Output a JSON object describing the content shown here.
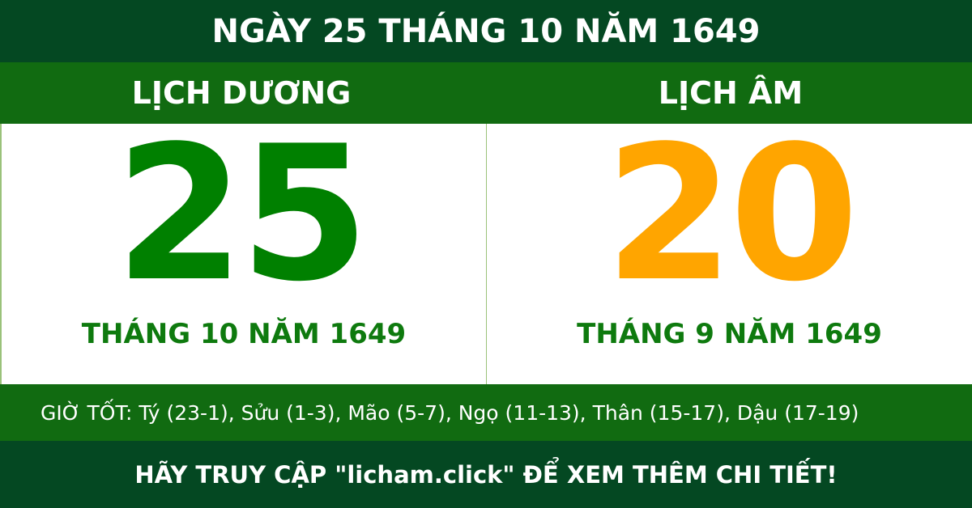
{
  "title": "NGÀY 25 THÁNG 10 NĂM 1649",
  "solar": {
    "heading": "LỊCH DƯƠNG",
    "day": "25",
    "month_year": "THÁNG 10 NĂM 1649"
  },
  "lunar": {
    "heading": "LỊCH ÂM",
    "day": "20",
    "month_year": "THÁNG 9 NĂM 1649"
  },
  "good_hours": "GIỜ TỐT: Tý (23-1), Sửu (1-3), Mão (5-7), Ngọ (11-13), Thân (15-17), Dậu (17-19)",
  "footer": "HÃY TRUY CẬP \"licham.click\" ĐỂ XEM THÊM CHI TIẾT!",
  "colors": {
    "dark_green": "#044822",
    "band_green": "#116b11",
    "solar_day": "#008000",
    "lunar_day": "#ffa500"
  }
}
